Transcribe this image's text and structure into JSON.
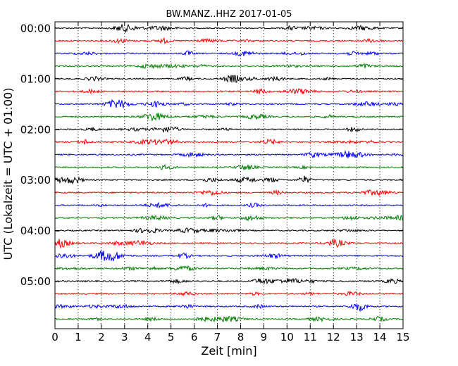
{
  "chart_data": {
    "type": "line",
    "title": "BW.MANZ..HHZ 2017-01-05",
    "xlabel": "Zeit  [min]",
    "ylabel": "UTC (Lokalzeit = UTC + 01:00)",
    "xlim": [
      0,
      15
    ],
    "x_ticks": [
      "0",
      "1",
      "2",
      "3",
      "4",
      "5",
      "6",
      "7",
      "8",
      "9",
      "10",
      "11",
      "12",
      "13",
      "14",
      "15"
    ],
    "y_ticks": [
      "00:00",
      "01:00",
      "02:00",
      "03:00",
      "04:00",
      "05:00"
    ],
    "trace_interval_minutes": 15,
    "trace_count": 24,
    "trace_colors": [
      "#000000",
      "#ff0000",
      "#0000ff",
      "#008000"
    ],
    "grid": {
      "vertical_dotted": true
    }
  }
}
